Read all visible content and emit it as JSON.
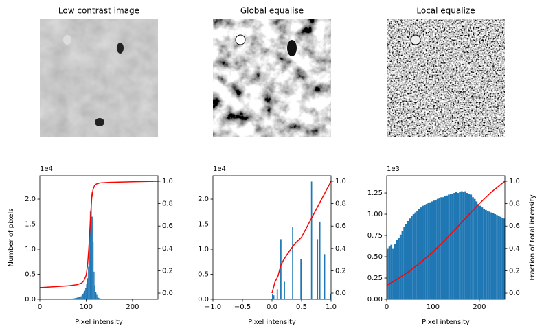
{
  "images": [
    {
      "title": "Low contrast image"
    },
    {
      "title": "Global equalise"
    },
    {
      "title": "Local equalize"
    }
  ],
  "chart_data": [
    {
      "type": "histogram",
      "color": "#1f77b4",
      "bins": [
        60,
        62,
        64,
        66,
        68,
        70,
        72,
        74,
        76,
        78,
        80,
        82,
        84,
        86,
        88,
        90,
        92,
        94,
        96,
        98,
        100,
        102,
        104,
        106,
        108,
        110,
        112,
        114,
        116,
        118,
        120,
        122,
        124,
        126,
        128,
        130,
        132,
        134,
        136,
        138,
        140
      ],
      "values": [
        50,
        60,
        80,
        100,
        120,
        150,
        180,
        200,
        250,
        300,
        350,
        400,
        450,
        500,
        600,
        800,
        1000,
        1300,
        1700,
        2200,
        3000,
        4200,
        6500,
        12000,
        17500,
        21500,
        16500,
        11500,
        5500,
        2800,
        1500,
        900,
        500,
        300,
        200,
        150,
        100,
        80,
        60,
        40
      ],
      "xlim": [
        0,
        255
      ],
      "xticks": [
        0,
        100,
        200
      ],
      "ylim": [
        0,
        24660
      ],
      "yticks": [
        {
          "value": 0,
          "label": "0.0"
        },
        {
          "value": 5000,
          "label": "0.5"
        },
        {
          "value": 10000,
          "label": "1.0"
        },
        {
          "value": 15000,
          "label": "1.5"
        },
        {
          "value": 20000,
          "label": "2.0"
        }
      ],
      "y_offset": "1e4",
      "xlabel": "Pixel intensity",
      "ylabel": "Number of pixels",
      "y2lim": [
        -0.055,
        1.049
      ],
      "y2ticks": [
        {
          "value": 0,
          "label": "0.0"
        },
        0.2,
        0.4,
        0.6,
        0.8,
        {
          "value": 1,
          "label": "1.0"
        }
      ],
      "line": {
        "color": "red",
        "axis": "y2",
        "x": [
          0,
          20,
          40,
          60,
          80,
          90,
          95,
          100,
          103,
          106,
          109,
          112,
          115,
          118,
          122,
          130,
          150,
          200,
          255
        ],
        "values": [
          0.05,
          0.055,
          0.06,
          0.065,
          0.075,
          0.09,
          0.11,
          0.16,
          0.25,
          0.42,
          0.65,
          0.85,
          0.93,
          0.96,
          0.975,
          0.985,
          0.99,
          0.995,
          1.0
        ]
      }
    },
    {
      "type": "histogram",
      "color": "#1f77b4",
      "bins": [
        0,
        0.02,
        0.04,
        0.06,
        0.08,
        0.1,
        0.12,
        0.14,
        0.16,
        0.18,
        0.2,
        0.22,
        0.24,
        0.26,
        0.28,
        0.3,
        0.32,
        0.34,
        0.36,
        0.38,
        0.4,
        0.42,
        0.44,
        0.46,
        0.48,
        0.5,
        0.52,
        0.54,
        0.56,
        0.58,
        0.6,
        0.62,
        0.64,
        0.66,
        0.68,
        0.7,
        0.72,
        0.74,
        0.76,
        0.78,
        0.8,
        0.82,
        0.84,
        0.86,
        0.88,
        0.9,
        0.92,
        0.94,
        0.96,
        0.98,
        1.0
      ],
      "values": [
        1000,
        800,
        0,
        0,
        2000,
        0,
        0,
        12000,
        0,
        0,
        3500,
        0,
        0,
        0,
        0,
        0,
        0,
        14500,
        0,
        0,
        0,
        0,
        0,
        0,
        8000,
        0,
        0,
        0,
        0,
        0,
        0,
        0,
        0,
        23500,
        0,
        0,
        0,
        0,
        12000,
        0,
        15500,
        0,
        0,
        0,
        9000,
        0,
        0,
        0,
        0,
        1000
      ],
      "xlim": [
        -1,
        1
      ],
      "xticks": [
        {
          "value": -1,
          "label": "−1.0"
        },
        {
          "value": -0.5,
          "label": "−0.5"
        },
        {
          "value": 0,
          "label": "0.0"
        },
        0.5,
        {
          "value": 1,
          "label": "1.0"
        }
      ],
      "ylim": [
        0,
        24660
      ],
      "yticks": [
        {
          "value": 0,
          "label": "0.0"
        },
        {
          "value": 5000,
          "label": "0.5"
        },
        {
          "value": 10000,
          "label": "1.0"
        },
        {
          "value": 15000,
          "label": "1.5"
        },
        {
          "value": 20000,
          "label": "2.0"
        }
      ],
      "y_offset": "1e4",
      "xlabel": "Pixel intensity",
      "y2lim": [
        -0.055,
        1.049
      ],
      "y2ticks": [
        {
          "value": 0,
          "label": "0.0"
        },
        0.2,
        0.4,
        0.6,
        0.8,
        {
          "value": 1,
          "label": "1.0"
        }
      ],
      "line": {
        "color": "red",
        "axis": "y2",
        "x": [
          0,
          0.05,
          0.1,
          0.15,
          0.2,
          0.3,
          0.4,
          0.5,
          0.6,
          0.7,
          0.8,
          0.9,
          1.0
        ],
        "values": [
          0,
          0.1,
          0.15,
          0.25,
          0.3,
          0.38,
          0.45,
          0.5,
          0.6,
          0.7,
          0.8,
          0.9,
          1.0
        ]
      }
    },
    {
      "type": "histogram",
      "color": "#1f77b4",
      "bins": [
        0,
        4,
        8,
        12,
        16,
        20,
        24,
        28,
        32,
        36,
        40,
        44,
        48,
        52,
        56,
        60,
        64,
        68,
        72,
        76,
        80,
        84,
        88,
        92,
        96,
        100,
        104,
        108,
        112,
        116,
        120,
        124,
        128,
        132,
        136,
        140,
        144,
        148,
        152,
        156,
        160,
        164,
        168,
        172,
        176,
        180,
        184,
        188,
        192,
        196,
        200,
        204,
        208,
        212,
        216,
        220,
        224,
        228,
        232,
        236,
        240,
        244,
        248,
        252,
        256
      ],
      "values": [
        600,
        620,
        640,
        600,
        650,
        700,
        720,
        760,
        800,
        850,
        880,
        920,
        950,
        980,
        1000,
        1020,
        1040,
        1060,
        1080,
        1100,
        1110,
        1120,
        1130,
        1140,
        1150,
        1160,
        1170,
        1180,
        1190,
        1200,
        1200,
        1210,
        1220,
        1230,
        1240,
        1240,
        1250,
        1260,
        1250,
        1260,
        1270,
        1260,
        1270,
        1250,
        1240,
        1230,
        1200,
        1180,
        1150,
        1120,
        1100,
        1080,
        1060,
        1050,
        1040,
        1030,
        1020,
        1010,
        1000,
        990,
        980,
        970,
        960,
        950
      ],
      "xlim": [
        0,
        255
      ],
      "xticks": [
        0,
        100,
        200
      ],
      "ylim": [
        0,
        1452
      ],
      "yticks": [
        {
          "value": 0,
          "label": "0.00"
        },
        {
          "value": 250,
          "label": "0.25"
        },
        {
          "value": 500,
          "label": "0.50"
        },
        {
          "value": 750,
          "label": "0.75"
        },
        {
          "value": 1000,
          "label": "1.00"
        },
        {
          "value": 1250,
          "label": "1.25"
        }
      ],
      "y_offset": "1e3",
      "xlabel": "Pixel intensity",
      "y2label": "Fraction of total intensity",
      "y2lim": [
        -0.055,
        1.049
      ],
      "y2ticks": [
        {
          "value": 0,
          "label": "0.0"
        },
        0.2,
        0.4,
        0.6,
        0.8,
        {
          "value": 1,
          "label": "1.0"
        }
      ],
      "line": {
        "color": "red",
        "axis": "y2",
        "x": [
          0,
          25,
          50,
          75,
          100,
          125,
          150,
          175,
          200,
          225,
          255
        ],
        "values": [
          0.07,
          0.13,
          0.2,
          0.28,
          0.37,
          0.47,
          0.58,
          0.69,
          0.8,
          0.9,
          1.0
        ]
      }
    }
  ]
}
